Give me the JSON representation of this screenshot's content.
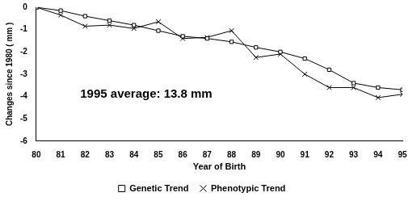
{
  "chart_data": {
    "type": "line",
    "x_label": "Year of Birth",
    "y_label": "Changes since 1980 ( mm )",
    "annotation": "1995 average: 13.8 mm",
    "categories": [
      "80",
      "81",
      "82",
      "83",
      "84",
      "85",
      "86",
      "87",
      "88",
      "89",
      "90",
      "91",
      "92",
      "93",
      "94",
      "95"
    ],
    "series": [
      {
        "name": "Genetic Trend",
        "color": "#000000",
        "marker": "square",
        "line_style": "solid",
        "values": [
          0,
          -0.15,
          -0.4,
          -0.6,
          -0.8,
          -1.05,
          -1.3,
          -1.4,
          -1.55,
          -1.8,
          -2.0,
          -2.3,
          -2.8,
          -3.4,
          -3.6,
          -3.7
        ]
      },
      {
        "name": "Phenotypic Trend",
        "color": "#000000",
        "marker": "x",
        "line_style": "solid",
        "values": [
          0,
          -0.35,
          -0.85,
          -0.8,
          -0.95,
          -0.65,
          -1.4,
          -1.35,
          -1.05,
          -2.25,
          -2.1,
          -3.0,
          -3.6,
          -3.6,
          -4.05,
          -3.9
        ]
      }
    ],
    "ylim": [
      -6,
      0
    ],
    "yticks": [
      -6,
      -5,
      -4,
      -3,
      -2,
      -1,
      0
    ],
    "grid": false,
    "legend": "bottom"
  }
}
